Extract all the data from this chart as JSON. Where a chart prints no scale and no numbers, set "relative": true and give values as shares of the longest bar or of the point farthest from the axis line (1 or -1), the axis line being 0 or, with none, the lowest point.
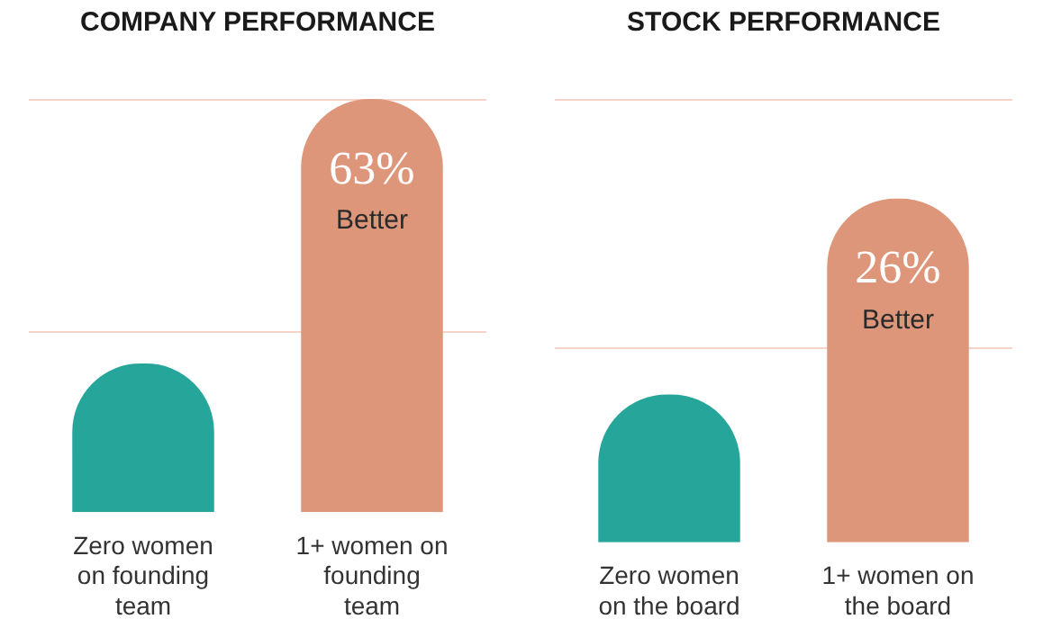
{
  "chart_data": [
    {
      "type": "bar",
      "title": "COMPANY PERFORMANCE",
      "relative": true,
      "categories": [
        "Zero women on founding team",
        "1+ women on founding team"
      ],
      "values": [
        0.36,
        1
      ],
      "colors": [
        "#26a69a",
        "#dd967a"
      ],
      "annotations": [
        {
          "text": "63% Better",
          "x": "1+ women on founding team",
          "y": 1
        }
      ],
      "ref_lines": [
        {
          "axis": "y",
          "value": 1,
          "color": "#f6d3c8"
        },
        {
          "axis": "y",
          "value": 0.44,
          "color": "#f6d3c8"
        }
      ]
    },
    {
      "type": "bar",
      "title": "STOCK PERFORMANCE",
      "relative": true,
      "categories": [
        "Zero women on the board",
        "1+ women on the board"
      ],
      "values": [
        0.43,
        1
      ],
      "colors": [
        "#26a69a",
        "#dd967a"
      ],
      "annotations": [
        {
          "text": "26% Better",
          "x": "1+ women on the board",
          "y": 1
        }
      ],
      "ref_lines": [
        {
          "axis": "y",
          "value": 1.29,
          "color": "#f6d3c8"
        },
        {
          "axis": "y",
          "value": 0.57,
          "color": "#f6d3c8"
        }
      ]
    }
  ]
}
